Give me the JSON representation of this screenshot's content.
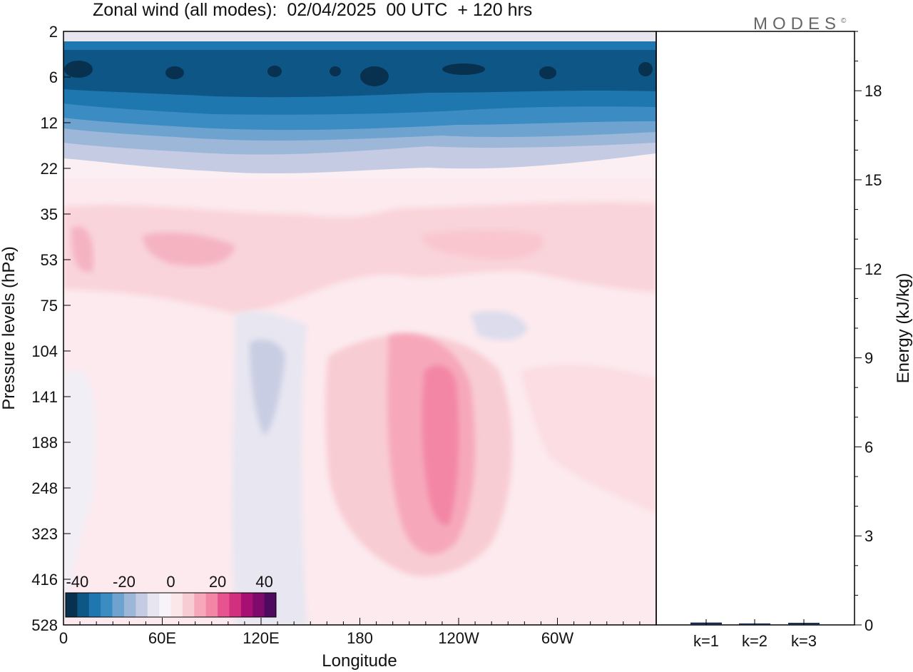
{
  "title": "Zonal wind (all modes):  02/04/2025  00 UTC  + 120 hrs",
  "logo": "MODES",
  "logo_mark": "©",
  "chart_data": [
    {
      "type": "heatmap",
      "xlabel": "Longitude",
      "ylabel": "Pressure levels (hPa)",
      "x_ticks": [
        "0",
        "60E",
        "120E",
        "180",
        "120W",
        "60W"
      ],
      "x_range_deg": [
        0,
        360
      ],
      "y_ticks": [
        "2",
        "6",
        "12",
        "22",
        "35",
        "53",
        "75",
        "104",
        "141",
        "188",
        "248",
        "323",
        "416",
        "528"
      ],
      "y_scale": "log",
      "colorbar": {
        "tick_labels": [
          "-40",
          "-20",
          "0",
          "20",
          "40"
        ],
        "range": [
          -45,
          45
        ],
        "step": 5,
        "colors": [
          "#08304f",
          "#0e5685",
          "#1f77b0",
          "#3b8cc2",
          "#6fa3cf",
          "#9cb7d8",
          "#c5cbe2",
          "#e6e5f0",
          "#f8f3f8",
          "#fbe6ea",
          "#f8ccd3",
          "#f6a8ba",
          "#f386a5",
          "#e6538f",
          "#d0307e",
          "#a80f72",
          "#7e0a6c",
          "#4d0a5e"
        ]
      },
      "fields": {
        "upper_easterlies": "strongest near 6 hPa, about -40 m/s, blue tones from 2 to 22 hPa",
        "stratospheric_westerlies": "weak positive 35-75 hPa, up to about 15 m/s",
        "jet_core": "about 25 m/s near 150W, 141-323 hPa"
      }
    },
    {
      "type": "bar",
      "ylabel": "Energy (kJ/kg)",
      "categories": [
        "k=1",
        "k=2",
        "k=3"
      ],
      "values": [
        0.08,
        0.05,
        0.07
      ],
      "ylim": [
        0,
        20
      ],
      "y_ticks": [
        "0",
        "3",
        "6",
        "9",
        "12",
        "15",
        "18"
      ]
    }
  ]
}
